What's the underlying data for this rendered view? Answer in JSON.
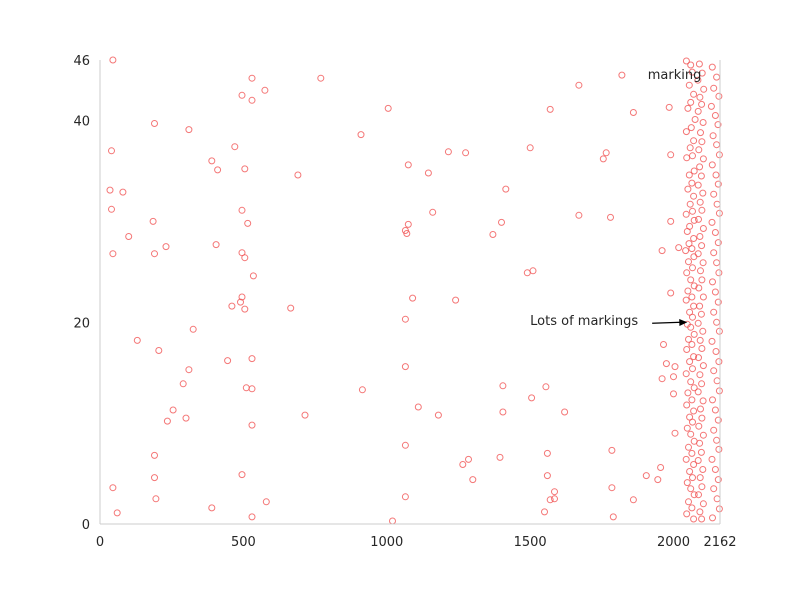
{
  "chart_data": {
    "type": "scatter",
    "title": "",
    "xlabel": "",
    "ylabel": "",
    "xlim": [
      0,
      2162
    ],
    "ylim": [
      0,
      46
    ],
    "grid": false,
    "marker": "open-circle",
    "point_color": "#f04a4a",
    "x_ticks": [
      {
        "value": 0,
        "label": "0"
      },
      {
        "value": 500,
        "label": "500"
      },
      {
        "value": 1000,
        "label": "1000"
      },
      {
        "value": 1500,
        "label": "1500"
      },
      {
        "value": 2000,
        "label": "2000"
      },
      {
        "value": 2162,
        "label": "2162"
      }
    ],
    "y_ticks": [
      {
        "value": 0,
        "label": "0"
      },
      {
        "value": 20,
        "label": "20"
      },
      {
        "value": 40,
        "label": "40"
      },
      {
        "value": 46,
        "label": "46"
      }
    ],
    "annotations": [
      {
        "text": "marking",
        "x": 1910,
        "y": 44.6,
        "arrow": false
      },
      {
        "text": "Lots of markings",
        "x": 1500,
        "y": 20.2,
        "arrow": true,
        "arrow_to": [
          2048,
          20
        ]
      }
    ],
    "points": [
      [
        45,
        46
      ],
      [
        530,
        44.2
      ],
      [
        770,
        44.2
      ],
      [
        575,
        43
      ],
      [
        495,
        42.5
      ],
      [
        530,
        42
      ],
      [
        1820,
        44.5
      ],
      [
        1670,
        43.5
      ],
      [
        1005,
        41.2
      ],
      [
        1570,
        41.1
      ],
      [
        1860,
        40.8
      ],
      [
        1985,
        41.3
      ],
      [
        190,
        39.7
      ],
      [
        310,
        39.1
      ],
      [
        910,
        38.6
      ],
      [
        470,
        37.4
      ],
      [
        40,
        37
      ],
      [
        1500,
        37.3
      ],
      [
        1215,
        36.9
      ],
      [
        1275,
        36.8
      ],
      [
        1765,
        36.8
      ],
      [
        1755,
        36.2
      ],
      [
        1990,
        36.6
      ],
      [
        390,
        36
      ],
      [
        410,
        35.1
      ],
      [
        505,
        35.2
      ],
      [
        1075,
        35.6
      ],
      [
        1145,
        34.8
      ],
      [
        690,
        34.6
      ],
      [
        1415,
        33.2
      ],
      [
        35,
        33.1
      ],
      [
        80,
        32.9
      ],
      [
        40,
        31.2
      ],
      [
        495,
        31.1
      ],
      [
        1160,
        30.9
      ],
      [
        1670,
        30.6
      ],
      [
        1780,
        30.4
      ],
      [
        185,
        30
      ],
      [
        515,
        29.8
      ],
      [
        1075,
        29.7
      ],
      [
        1400,
        29.9
      ],
      [
        1990,
        30
      ],
      [
        1065,
        29.1
      ],
      [
        1070,
        28.8
      ],
      [
        1370,
        28.7
      ],
      [
        100,
        28.5
      ],
      [
        405,
        27.7
      ],
      [
        230,
        27.5
      ],
      [
        1960,
        27.1
      ],
      [
        2018,
        27.4
      ],
      [
        45,
        26.8
      ],
      [
        190,
        26.8
      ],
      [
        495,
        26.9
      ],
      [
        505,
        26.4
      ],
      [
        1510,
        25.1
      ],
      [
        1490,
        24.9
      ],
      [
        535,
        24.6
      ],
      [
        1990,
        22.9
      ],
      [
        495,
        22.5
      ],
      [
        1090,
        22.4
      ],
      [
        1240,
        22.2
      ],
      [
        490,
        22
      ],
      [
        460,
        21.6
      ],
      [
        665,
        21.4
      ],
      [
        505,
        21.3
      ],
      [
        1065,
        20.3
      ],
      [
        325,
        19.3
      ],
      [
        130,
        18.2
      ],
      [
        1965,
        17.8
      ],
      [
        205,
        17.2
      ],
      [
        530,
        16.4
      ],
      [
        445,
        16.2
      ],
      [
        1065,
        15.6
      ],
      [
        310,
        15.3
      ],
      [
        1975,
        15.9
      ],
      [
        2005,
        15.6
      ],
      [
        290,
        13.9
      ],
      [
        1405,
        13.7
      ],
      [
        1555,
        13.6
      ],
      [
        915,
        13.3
      ],
      [
        510,
        13.5
      ],
      [
        530,
        13.4
      ],
      [
        1960,
        14.4
      ],
      [
        2000,
        14.6
      ],
      [
        1505,
        12.5
      ],
      [
        1110,
        11.6
      ],
      [
        255,
        11.3
      ],
      [
        1620,
        11.1
      ],
      [
        1180,
        10.8
      ],
      [
        715,
        10.8
      ],
      [
        1405,
        11.1
      ],
      [
        300,
        10.5
      ],
      [
        235,
        10.2
      ],
      [
        530,
        9.8
      ],
      [
        2000,
        12.9
      ],
      [
        2005,
        9
      ],
      [
        1065,
        7.8
      ],
      [
        190,
        6.8
      ],
      [
        1560,
        7
      ],
      [
        1785,
        7.3
      ],
      [
        1395,
        6.6
      ],
      [
        1285,
        6.4
      ],
      [
        1265,
        5.9
      ],
      [
        1955,
        5.6
      ],
      [
        1300,
        4.4
      ],
      [
        1560,
        4.8
      ],
      [
        495,
        4.9
      ],
      [
        1905,
        4.8
      ],
      [
        190,
        4.6
      ],
      [
        1945,
        4.4
      ],
      [
        1785,
        3.6
      ],
      [
        45,
        3.6
      ],
      [
        1585,
        3.2
      ],
      [
        1065,
        2.7
      ],
      [
        1585,
        2.5
      ],
      [
        1570,
        2.4
      ],
      [
        195,
        2.5
      ],
      [
        580,
        2.2
      ],
      [
        1860,
        2.4
      ],
      [
        390,
        1.6
      ],
      [
        1550,
        1.2
      ],
      [
        60,
        1.1
      ],
      [
        1790,
        0.7
      ],
      [
        530,
        0.7
      ],
      [
        1020,
        0.3
      ],
      [
        2045,
        45.9
      ],
      [
        2060,
        45.5
      ],
      [
        2065,
        44.8
      ],
      [
        2055,
        43.5
      ],
      [
        2070,
        42.6
      ],
      [
        2060,
        41.8
      ],
      [
        2050,
        41.2
      ],
      [
        2075,
        40.1
      ],
      [
        2062,
        39.3
      ],
      [
        2045,
        38.9
      ],
      [
        2070,
        38
      ],
      [
        2058,
        37.3
      ],
      [
        2066,
        36.5
      ],
      [
        2046,
        36.3
      ],
      [
        2072,
        35
      ],
      [
        2055,
        34.6
      ],
      [
        2064,
        33.8
      ],
      [
        2050,
        33.2
      ],
      [
        2070,
        32.5
      ],
      [
        2058,
        31.7
      ],
      [
        2066,
        31
      ],
      [
        2044,
        30.7
      ],
      [
        2072,
        30.1
      ],
      [
        2056,
        29.5
      ],
      [
        2048,
        29
      ],
      [
        2070,
        28.3
      ],
      [
        2054,
        27.8
      ],
      [
        2064,
        27.3
      ],
      [
        2042,
        27.1
      ],
      [
        2071,
        26.5
      ],
      [
        2052,
        26
      ],
      [
        2066,
        25.4
      ],
      [
        2046,
        24.9
      ],
      [
        2060,
        24.2
      ],
      [
        2072,
        23.6
      ],
      [
        2050,
        23.1
      ],
      [
        2064,
        22.5
      ],
      [
        2044,
        22.2
      ],
      [
        2070,
        21.6
      ],
      [
        2056,
        21
      ],
      [
        2066,
        20.5
      ],
      [
        2048,
        19.8
      ],
      [
        2060,
        19.5
      ],
      [
        2072,
        18.8
      ],
      [
        2052,
        18.3
      ],
      [
        2064,
        17.8
      ],
      [
        2046,
        17.3
      ],
      [
        2070,
        16.6
      ],
      [
        2056,
        16.1
      ],
      [
        2066,
        15.4
      ],
      [
        2044,
        14.9
      ],
      [
        2060,
        14.1
      ],
      [
        2072,
        13.5
      ],
      [
        2050,
        13
      ],
      [
        2064,
        12.3
      ],
      [
        2046,
        11.8
      ],
      [
        2070,
        11.2
      ],
      [
        2056,
        10.6
      ],
      [
        2066,
        10.1
      ],
      [
        2048,
        9.5
      ],
      [
        2060,
        8.9
      ],
      [
        2072,
        8.2
      ],
      [
        2052,
        7.6
      ],
      [
        2064,
        7
      ],
      [
        2044,
        6.4
      ],
      [
        2070,
        5.9
      ],
      [
        2056,
        5.2
      ],
      [
        2066,
        4.6
      ],
      [
        2048,
        4.1
      ],
      [
        2060,
        3.5
      ],
      [
        2072,
        2.9
      ],
      [
        2052,
        2.2
      ],
      [
        2064,
        1.6
      ],
      [
        2046,
        1
      ],
      [
        2070,
        0.5
      ],
      [
        2090,
        45.6
      ],
      [
        2100,
        44.7
      ],
      [
        2085,
        44
      ],
      [
        2105,
        43.1
      ],
      [
        2092,
        42.3
      ],
      [
        2098,
        41.6
      ],
      [
        2086,
        40.9
      ],
      [
        2103,
        39.8
      ],
      [
        2094,
        38.8
      ],
      [
        2099,
        37.9
      ],
      [
        2088,
        37.1
      ],
      [
        2104,
        36.2
      ],
      [
        2091,
        35.4
      ],
      [
        2097,
        34.5
      ],
      [
        2086,
        33.6
      ],
      [
        2102,
        32.8
      ],
      [
        2093,
        31.9
      ],
      [
        2099,
        31.1
      ],
      [
        2087,
        30.2
      ],
      [
        2104,
        29.3
      ],
      [
        2092,
        28.5
      ],
      [
        2098,
        27.6
      ],
      [
        2086,
        26.8
      ],
      [
        2103,
        25.9
      ],
      [
        2094,
        25.1
      ],
      [
        2099,
        24.2
      ],
      [
        2088,
        23.4
      ],
      [
        2104,
        22.5
      ],
      [
        2091,
        21.6
      ],
      [
        2097,
        20.8
      ],
      [
        2086,
        19.9
      ],
      [
        2102,
        19.1
      ],
      [
        2093,
        18.2
      ],
      [
        2099,
        17.4
      ],
      [
        2087,
        16.5
      ],
      [
        2104,
        15.7
      ],
      [
        2092,
        14.8
      ],
      [
        2098,
        13.9
      ],
      [
        2086,
        13.1
      ],
      [
        2103,
        12.2
      ],
      [
        2094,
        11.4
      ],
      [
        2099,
        10.5
      ],
      [
        2088,
        9.7
      ],
      [
        2104,
        8.8
      ],
      [
        2091,
        8
      ],
      [
        2097,
        7.1
      ],
      [
        2086,
        6.3
      ],
      [
        2102,
        5.4
      ],
      [
        2093,
        4.6
      ],
      [
        2099,
        3.7
      ],
      [
        2087,
        2.9
      ],
      [
        2104,
        2
      ],
      [
        2092,
        1.2
      ],
      [
        2098,
        0.5
      ],
      [
        2135,
        45.3
      ],
      [
        2150,
        44.3
      ],
      [
        2140,
        43.2
      ],
      [
        2158,
        42.4
      ],
      [
        2132,
        41.4
      ],
      [
        2146,
        40.5
      ],
      [
        2155,
        39.6
      ],
      [
        2138,
        38.5
      ],
      [
        2150,
        37.6
      ],
      [
        2160,
        36.6
      ],
      [
        2135,
        35.6
      ],
      [
        2148,
        34.6
      ],
      [
        2156,
        33.7
      ],
      [
        2140,
        32.7
      ],
      [
        2152,
        31.7
      ],
      [
        2160,
        30.8
      ],
      [
        2134,
        29.9
      ],
      [
        2146,
        28.9
      ],
      [
        2156,
        27.9
      ],
      [
        2140,
        26.9
      ],
      [
        2150,
        25.9
      ],
      [
        2158,
        24.9
      ],
      [
        2136,
        24
      ],
      [
        2146,
        23
      ],
      [
        2156,
        22
      ],
      [
        2140,
        21
      ],
      [
        2150,
        20
      ],
      [
        2160,
        19.1
      ],
      [
        2134,
        18.1
      ],
      [
        2148,
        17.1
      ],
      [
        2158,
        16.1
      ],
      [
        2140,
        15.2
      ],
      [
        2152,
        14.2
      ],
      [
        2160,
        13.2
      ],
      [
        2136,
        12.3
      ],
      [
        2146,
        11.3
      ],
      [
        2156,
        10.3
      ],
      [
        2140,
        9.3
      ],
      [
        2150,
        8.3
      ],
      [
        2158,
        7.4
      ],
      [
        2134,
        6.4
      ],
      [
        2146,
        5.4
      ],
      [
        2156,
        4.4
      ],
      [
        2140,
        3.5
      ],
      [
        2152,
        2.5
      ],
      [
        2160,
        1.5
      ],
      [
        2136,
        0.6
      ]
    ]
  }
}
